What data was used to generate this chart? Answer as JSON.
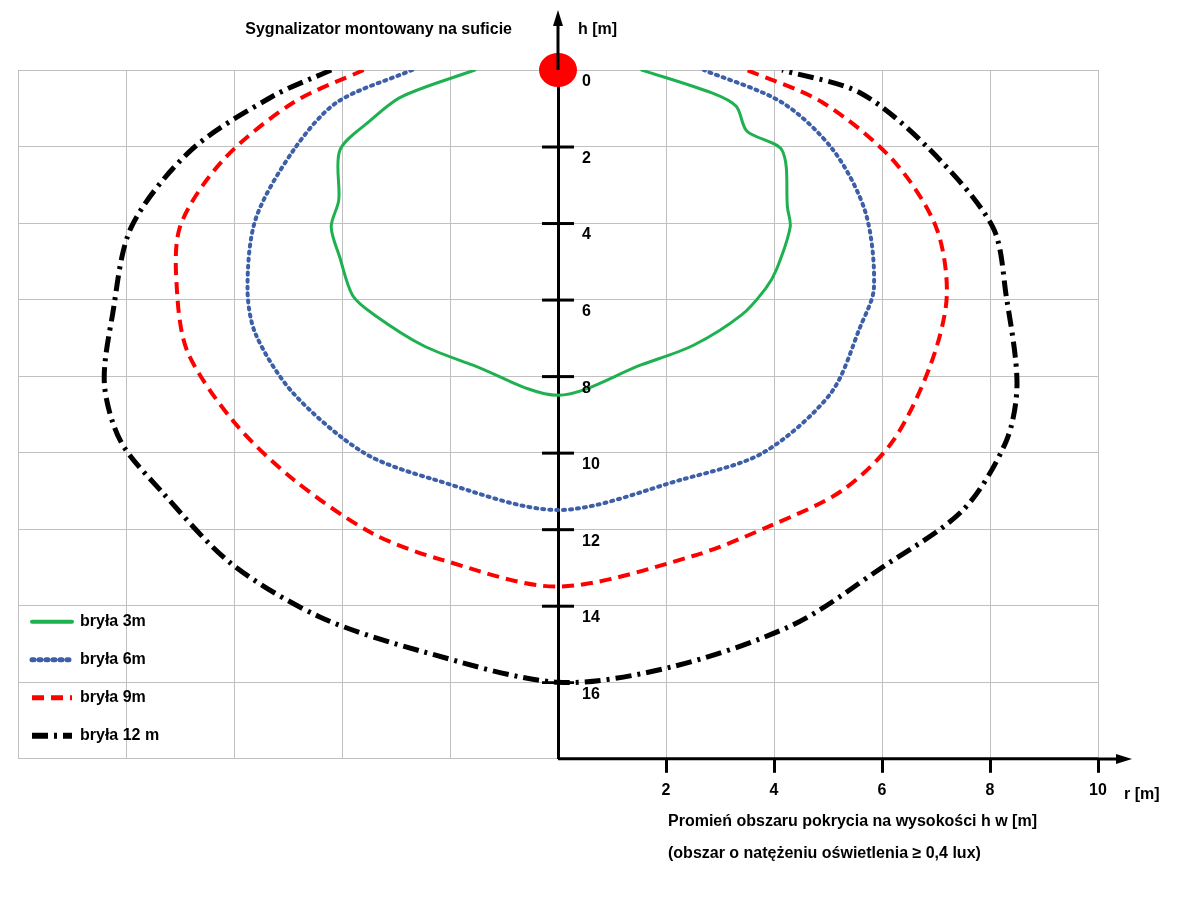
{
  "chart_data": {
    "type": "line",
    "title": "Sygnalizator montowany na suficie",
    "xlabel": "r [m]",
    "ylabel": "h [m]",
    "annotations": [
      "Promień obszaru pokrycia na wysokości h w [m]",
      "(obszar o natężeniu oświetlenia ≥ 0,4 lux)"
    ],
    "xlim": [
      -10,
      10
    ],
    "ylim": [
      18,
      0
    ],
    "xticks": [
      {
        "value": -10,
        "label": null
      },
      {
        "value": -8,
        "label": null
      },
      {
        "value": -6,
        "label": null
      },
      {
        "value": -4,
        "label": null
      },
      {
        "value": -2,
        "label": null
      },
      {
        "value": 0,
        "label": null
      },
      2,
      4,
      6,
      8,
      10
    ],
    "yticks": [
      0,
      2,
      4,
      6,
      8,
      10,
      12,
      14,
      16
    ],
    "grid": true,
    "legend": "bottom left",
    "marker": "none",
    "series": [
      {
        "name": "bryła 3m",
        "color": "#1fb04f",
        "line_style": "solid",
        "x": [
          -1.54,
          -2.9,
          -3.5,
          -4.04,
          -4.06,
          -4.2,
          -4.04,
          -3.8,
          -3.4,
          -2.5,
          -1.6,
          0,
          1.55,
          2.5,
          3.4,
          3.85,
          4.05,
          4.3,
          4.25,
          4.15,
          3.5,
          3.3,
          2.85,
          1.55
        ],
        "values": [
          0,
          0.7,
          1.35,
          2.1,
          3.4,
          4.1,
          4.9,
          5.9,
          6.4,
          7.2,
          7.7,
          8.5,
          7.7,
          7.2,
          6.4,
          5.7,
          5.2,
          4.1,
          3.6,
          2.1,
          1.6,
          0.95,
          0.6,
          0
        ]
      },
      {
        "name": "bryła 6m",
        "color": "#3d5fa8",
        "line_style": "dotted",
        "x": [
          -2.7,
          -4.1,
          -4.9,
          -5.6,
          -5.75,
          -5.6,
          -4.9,
          -3.6,
          -2.3,
          0,
          2.3,
          3.8,
          5.05,
          5.6,
          5.85,
          5.7,
          5.1,
          4.15,
          2.7
        ],
        "values": [
          0,
          0.85,
          2.1,
          3.9,
          5.7,
          6.9,
          8.45,
          10,
          10.7,
          11.5,
          10.7,
          10,
          8.45,
          6.7,
          5.7,
          3.75,
          2.1,
          0.85,
          0
        ]
      },
      {
        "name": "bryła 9m",
        "color": "#ff0000",
        "line_style": "dashed",
        "x": [
          -3.6,
          -4.9,
          -6.2,
          -7.0,
          -7.05,
          -6.85,
          -6.0,
          -4.9,
          -3.45,
          -2.15,
          0,
          2.5,
          3.95,
          5.25,
          6.2,
          6.9,
          7.2,
          7.0,
          6.2,
          4.9,
          3.5
        ],
        "values": [
          0,
          0.85,
          2.35,
          4.1,
          5.9,
          7.4,
          9.2,
          10.7,
          12.1,
          12.8,
          13.5,
          12.7,
          11.9,
          11,
          9.7,
          7.7,
          5.9,
          4.1,
          2.35,
          0.85,
          0
        ]
      },
      {
        "name": "bryła 12 m",
        "color": "#000000",
        "line_style": "dashdot",
        "x": [
          -4.2,
          -5.3,
          -6.8,
          -7.9,
          -8.25,
          -8.4,
          -8.1,
          -7.35,
          -6.05,
          -4.4,
          -2.5,
          0,
          2.1,
          4.35,
          6.0,
          7.5,
          8.3,
          8.5,
          8.3,
          8.05,
          6.9,
          5.6,
          4.15
        ],
        "values": [
          0,
          0.7,
          2.1,
          4.1,
          6.4,
          8.2,
          9.7,
          11,
          12.9,
          14.3,
          15.2,
          16,
          15.6,
          14.5,
          13,
          11.5,
          9.7,
          8.2,
          5.9,
          4.1,
          2.1,
          0.6,
          0
        ]
      }
    ]
  }
}
